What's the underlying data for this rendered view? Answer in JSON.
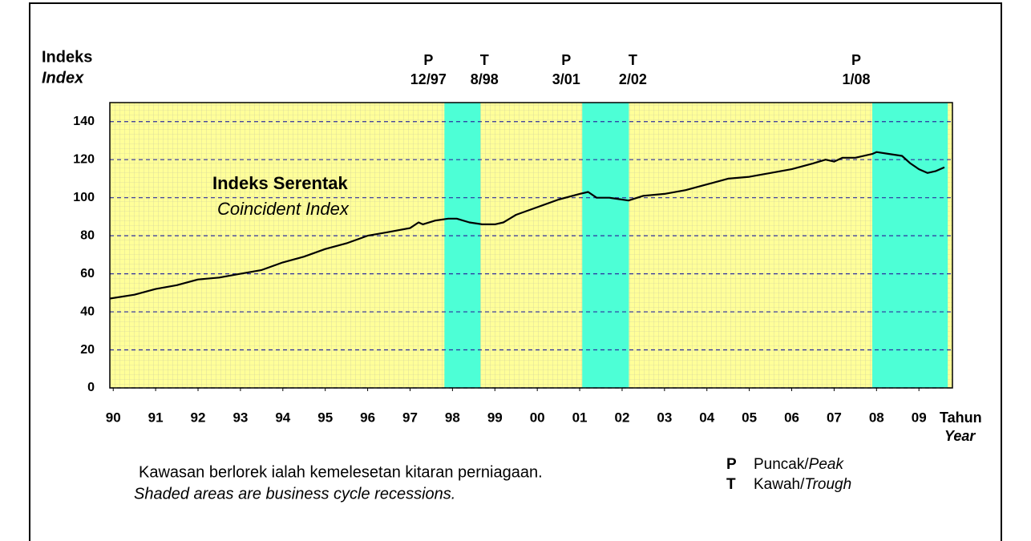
{
  "chart_data": {
    "type": "line",
    "y_axis_label": "Indeks",
    "y_axis_label_en": "Index",
    "x_axis_label": "Tahun",
    "x_axis_label_en": "Year",
    "series_label": "Indeks Serentak",
    "series_label_en": "Coincident Index",
    "note": "Kawasan berlorek ialah kemelesetan kitaran perniagaan.",
    "note_en": "Shaded areas are business cycle recessions.",
    "legend": [
      {
        "symbol": "P",
        "text": "Puncak/",
        "text_en": "Peak"
      },
      {
        "symbol": "T",
        "text": "Kawah/",
        "text_en": "Trough"
      }
    ],
    "recessions": [
      {
        "peak_symbol": "P",
        "peak": "12/97",
        "trough_symbol": "T",
        "trough": "8/98",
        "start": 1997.81,
        "end": 1998.66
      },
      {
        "peak_symbol": "P",
        "peak": "3/01",
        "trough_symbol": "T",
        "trough": "2/02",
        "start": 2001.06,
        "end": 2002.16
      },
      {
        "peak_symbol": "P",
        "peak": "1/08",
        "start": 2007.9,
        "end": 2009.68
      }
    ],
    "recession_color": "#4dffd6",
    "plot_background": "#ffff99",
    "grid": true,
    "grid_color": "#2e2e9e",
    "xlim": [
      1989.92,
      2009.79
    ],
    "xticks": [
      {
        "value": 1990,
        "label": "90"
      },
      {
        "value": 1991,
        "label": "91"
      },
      {
        "value": 1992,
        "label": "92"
      },
      {
        "value": 1993,
        "label": "93"
      },
      {
        "value": 1994,
        "label": "94"
      },
      {
        "value": 1995,
        "label": "95"
      },
      {
        "value": 1996,
        "label": "96"
      },
      {
        "value": 1997,
        "label": "97"
      },
      {
        "value": 1998,
        "label": "98"
      },
      {
        "value": 1999,
        "label": "99"
      },
      {
        "value": 2000,
        "label": "00"
      },
      {
        "value": 2001,
        "label": "01"
      },
      {
        "value": 2002,
        "label": "02"
      },
      {
        "value": 2003,
        "label": "03"
      },
      {
        "value": 2004,
        "label": "04"
      },
      {
        "value": 2005,
        "label": "05"
      },
      {
        "value": 2006,
        "label": "06"
      },
      {
        "value": 2007,
        "label": "07"
      },
      {
        "value": 2008,
        "label": "08"
      },
      {
        "value": 2009,
        "label": "09"
      }
    ],
    "ylim": [
      0,
      150
    ],
    "yticks": [
      0,
      20,
      40,
      60,
      80,
      100,
      120,
      140
    ],
    "series": [
      {
        "name": "Indeks Serentak",
        "color": "#000000",
        "x": [
          1989.92,
          1990.5,
          1991.0,
          1991.5,
          1992.0,
          1992.5,
          1993.0,
          1993.5,
          1994.0,
          1994.5,
          1995.0,
          1995.5,
          1996.0,
          1996.5,
          1997.0,
          1997.2,
          1997.3,
          1997.6,
          1997.9,
          1998.1,
          1998.4,
          1998.7,
          1999.0,
          1999.2,
          1999.5,
          2000.0,
          2000.5,
          2001.0,
          2001.2,
          2001.4,
          2001.7,
          2002.0,
          2002.15,
          2002.5,
          2003.0,
          2003.5,
          2004.0,
          2004.5,
          2005.0,
          2005.5,
          2006.0,
          2006.5,
          2006.8,
          2007.0,
          2007.2,
          2007.5,
          2007.9,
          2008.0,
          2008.3,
          2008.6,
          2008.8,
          2009.0,
          2009.2,
          2009.4,
          2009.6
        ],
        "values": [
          47,
          49,
          52,
          54,
          57,
          58,
          60,
          62,
          66,
          69,
          73,
          76,
          80,
          82,
          84,
          87,
          86,
          88,
          89,
          89,
          87,
          86,
          86,
          87,
          91,
          95,
          99,
          102,
          103,
          100,
          100,
          99,
          98.5,
          101,
          102,
          104,
          107,
          110,
          111,
          113,
          115,
          118,
          120,
          119,
          121,
          121,
          123,
          124,
          123,
          122,
          118,
          115,
          113,
          114,
          116
        ]
      }
    ]
  }
}
